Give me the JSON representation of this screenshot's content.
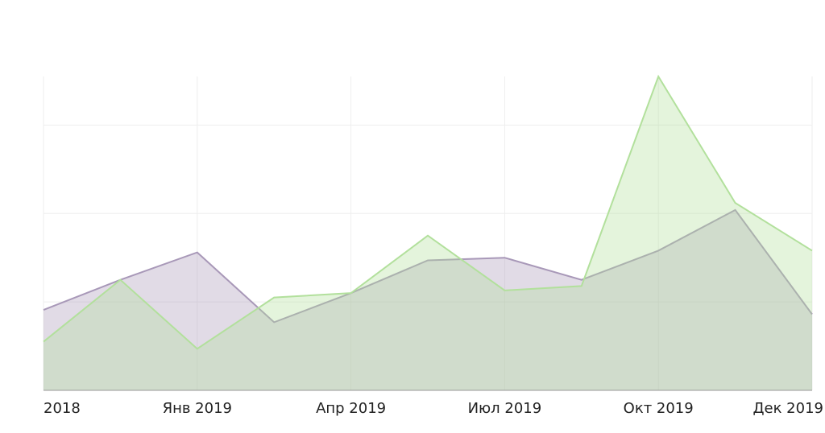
{
  "chart_data": {
    "type": "area",
    "categories": [
      "2018",
      null,
      "Янв 2019",
      null,
      "Апр 2019",
      null,
      "Июл 2019",
      null,
      "Окт 2019",
      null,
      "Дек 2019"
    ],
    "series": [
      {
        "color": "#a898b8",
        "values": [
          0.91,
          1.25,
          1.56,
          0.77,
          1.1,
          1.47,
          1.5,
          1.25,
          1.58,
          2.04,
          0.86
        ]
      },
      {
        "color": "#b2e09c",
        "values": [
          0.55,
          1.25,
          0.47,
          1.05,
          1.1,
          1.75,
          1.13,
          1.18,
          3.55,
          2.12,
          1.58
        ]
      }
    ],
    "ylim": [
      0,
      3.55
    ],
    "yticks": [
      0,
      1,
      2,
      3
    ],
    "grid": true
  }
}
